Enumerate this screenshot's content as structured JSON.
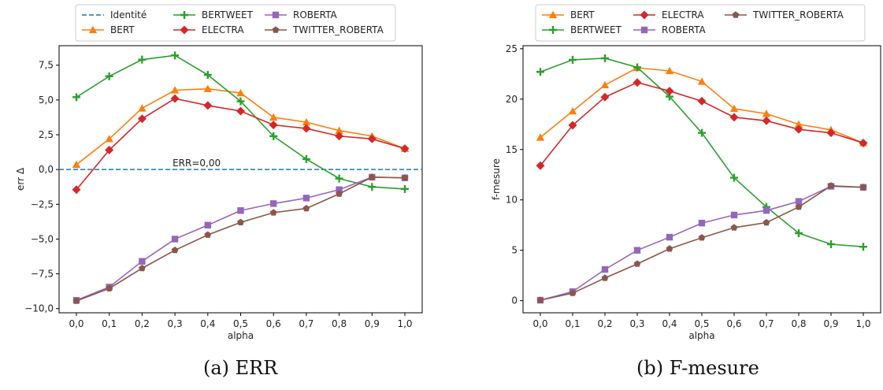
{
  "chart_data": [
    {
      "type": "line",
      "caption": "(a) ERR",
      "xlabel": "alpha",
      "ylabel": "err Δ",
      "x": [
        0.0,
        0.1,
        0.2,
        0.3,
        0.4,
        0.5,
        0.6,
        0.7,
        0.8,
        0.9,
        1.0
      ],
      "x_tick_labels": [
        "0,0",
        "0,1",
        "0,2",
        "0,3",
        "0,4",
        "0,5",
        "0,6",
        "0,7",
        "0,8",
        "0,9",
        "1,0"
      ],
      "ylim": [
        -10.3,
        8.9
      ],
      "yticks": [
        -10.0,
        -7.5,
        -5.0,
        -2.5,
        0.0,
        2.5,
        5.0,
        7.5
      ],
      "y_tick_labels": [
        "−10,0",
        "−7,5",
        "−5,0",
        "−2,5",
        "0,0",
        "2,5",
        "5,0",
        "7,5"
      ],
      "reference_line": {
        "name": "Identité",
        "y": 0.0,
        "color": "#1f77b4",
        "style": "dashed"
      },
      "annotation": {
        "text": "ERR=0,00",
        "x": 0.3,
        "y": 0.0
      },
      "series": [
        {
          "name": "BERT",
          "color": "#ff7f0e",
          "marker": "triangle",
          "values": [
            0.35,
            2.2,
            4.4,
            5.7,
            5.8,
            5.5,
            3.75,
            3.4,
            2.8,
            2.4,
            1.5
          ]
        },
        {
          "name": "BERTWEET",
          "color": "#2ca02c",
          "marker": "plus",
          "values": [
            5.2,
            6.7,
            7.9,
            8.2,
            6.8,
            4.9,
            2.4,
            0.75,
            -0.65,
            -1.25,
            -1.4
          ]
        },
        {
          "name": "ELECTRA",
          "color": "#d62728",
          "marker": "diamond",
          "values": [
            -1.45,
            1.4,
            3.65,
            5.1,
            4.6,
            4.2,
            3.2,
            2.95,
            2.4,
            2.2,
            1.5
          ]
        },
        {
          "name": "ROBERTA",
          "color": "#9467bd",
          "marker": "square",
          "values": [
            -9.4,
            -8.45,
            -6.6,
            -5.0,
            -4.0,
            -2.95,
            -2.45,
            -2.05,
            -1.45,
            -0.55,
            -0.6
          ]
        },
        {
          "name": "TWITTER_ROBERTA",
          "color": "#8c564b",
          "marker": "pentagon",
          "values": [
            -9.45,
            -8.55,
            -7.1,
            -5.8,
            -4.7,
            -3.8,
            -3.1,
            -2.8,
            -1.75,
            -0.55,
            -0.6
          ]
        }
      ],
      "legend": {
        "placement": "top",
        "columns": 3,
        "order": [
          "Identité",
          "BERT",
          "BERTWEET",
          "ELECTRA",
          "ROBERTA",
          "TWITTER_ROBERTA"
        ]
      }
    },
    {
      "type": "line",
      "caption": "(b) F-mesure",
      "xlabel": "alpha",
      "ylabel": "f-mesure",
      "x": [
        0.0,
        0.1,
        0.2,
        0.3,
        0.4,
        0.5,
        0.6,
        0.7,
        0.8,
        0.9,
        1.0
      ],
      "x_tick_labels": [
        "0,0",
        "0,1",
        "0,2",
        "0,3",
        "0,4",
        "0,5",
        "0,6",
        "0,7",
        "0,8",
        "0,9",
        "1,0"
      ],
      "ylim": [
        -1.2,
        25.3
      ],
      "yticks": [
        0,
        5,
        10,
        15,
        20,
        25
      ],
      "y_tick_labels": [
        "0",
        "5",
        "10",
        "15",
        "20",
        "25"
      ],
      "series": [
        {
          "name": "BERT",
          "color": "#ff7f0e",
          "marker": "triangle",
          "values": [
            16.2,
            18.8,
            21.4,
            23.1,
            22.8,
            21.75,
            19.05,
            18.55,
            17.5,
            16.95,
            15.65
          ]
        },
        {
          "name": "BERTWEET",
          "color": "#2ca02c",
          "marker": "plus",
          "values": [
            22.7,
            23.9,
            24.05,
            23.15,
            20.25,
            16.65,
            12.2,
            9.3,
            6.7,
            5.6,
            5.35
          ]
        },
        {
          "name": "ELECTRA",
          "color": "#d62728",
          "marker": "diamond",
          "values": [
            13.4,
            17.4,
            20.2,
            21.65,
            20.8,
            19.8,
            18.2,
            17.85,
            17.0,
            16.65,
            15.65
          ]
        },
        {
          "name": "ROBERTA",
          "color": "#9467bd",
          "marker": "square",
          "values": [
            0.05,
            0.9,
            3.1,
            5.0,
            6.3,
            7.7,
            8.5,
            8.95,
            9.85,
            11.35,
            11.25
          ]
        },
        {
          "name": "TWITTER_ROBERTA",
          "color": "#8c564b",
          "marker": "pentagon",
          "values": [
            0.05,
            0.75,
            2.25,
            3.65,
            5.15,
            6.25,
            7.25,
            7.75,
            9.3,
            11.4,
            11.25
          ]
        }
      ],
      "legend": {
        "placement": "top",
        "columns": 3,
        "order": [
          "BERT",
          "BERTWEET",
          "ELECTRA",
          "ROBERTA",
          "TWITTER_ROBERTA"
        ]
      }
    }
  ]
}
